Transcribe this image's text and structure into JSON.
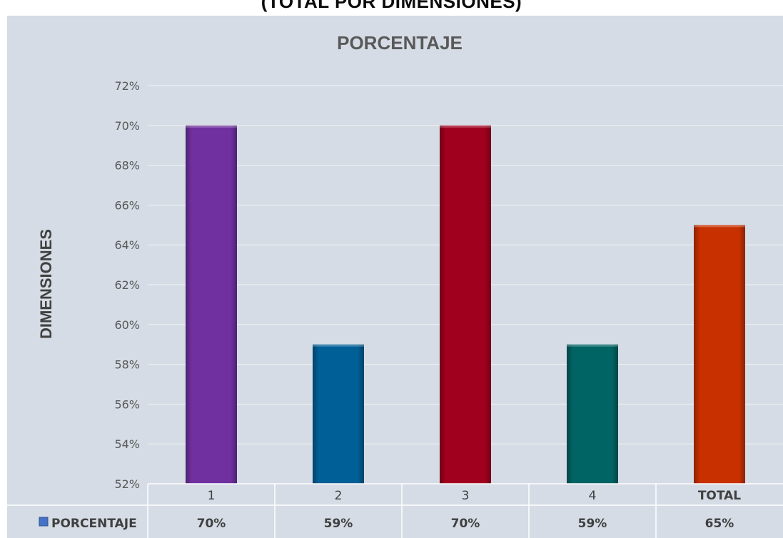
{
  "page": {
    "outer_title": "(TOTAL POR DIMENSIONES)"
  },
  "chart_data": {
    "type": "bar",
    "title": "PORCENTAJE",
    "xlabel": "",
    "ylabel": "DIMENSIONES",
    "categories": [
      "1",
      "2",
      "3",
      "4",
      "TOTAL"
    ],
    "series": [
      {
        "name": "PORCENTAJE",
        "values": [
          0.7,
          0.59,
          0.7,
          0.59,
          0.65
        ]
      }
    ],
    "data_labels": [
      "70%",
      "59%",
      "70%",
      "59%",
      "65%"
    ],
    "ylim": [
      0.52,
      0.72
    ],
    "ytick_step": 0.02,
    "y_tick_labels": [
      "52%",
      "54%",
      "56%",
      "58%",
      "60%",
      "62%",
      "64%",
      "66%",
      "68%",
      "70%",
      "72%"
    ],
    "grid": true,
    "legend": "data-table-below",
    "bar_colors": [
      "#7030a0",
      "#005f96",
      "#a0001e",
      "#006464",
      "#c83000"
    ],
    "colors": {
      "background": "#d5dce5",
      "gridline": "#f2f2f2",
      "legend_key": "#4472c4"
    }
  }
}
